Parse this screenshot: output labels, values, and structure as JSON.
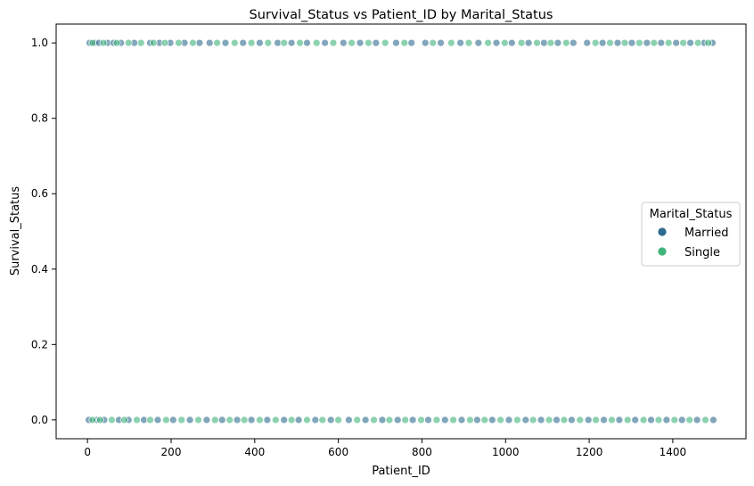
{
  "chart_data": {
    "type": "scatter",
    "title": "Survival_Status vs Patient_ID by Marital_Status",
    "xlabel": "Patient_ID",
    "ylabel": "Survival_Status",
    "xlim": [
      -75,
      1575
    ],
    "ylim": [
      -0.05,
      1.05
    ],
    "x_ticks": [
      0,
      200,
      400,
      600,
      800,
      1000,
      1200,
      1400
    ],
    "y_ticks": [
      0.0,
      0.2,
      0.4,
      0.6,
      0.8,
      1.0
    ],
    "x_tick_labels": [
      "0",
      "200",
      "400",
      "600",
      "800",
      "1000",
      "1200",
      "1400"
    ],
    "y_tick_labels": [
      "0.0",
      "0.2",
      "0.4",
      "0.6",
      "0.8",
      "1.0"
    ],
    "grid": false,
    "legend": {
      "title": "Marital_Status",
      "placement": "center-right",
      "entries": [
        "Married",
        "Single"
      ]
    },
    "series": [
      {
        "name": "Married",
        "color": "#2e6b8e",
        "points": [
          [
            5,
            1
          ],
          [
            18,
            1
          ],
          [
            28,
            1
          ],
          [
            48,
            1
          ],
          [
            62,
            1
          ],
          [
            80,
            1
          ],
          [
            112,
            1
          ],
          [
            150,
            1
          ],
          [
            172,
            1
          ],
          [
            198,
            1
          ],
          [
            232,
            1
          ],
          [
            268,
            1
          ],
          [
            292,
            1
          ],
          [
            330,
            1
          ],
          [
            372,
            1
          ],
          [
            412,
            1
          ],
          [
            455,
            1
          ],
          [
            488,
            1
          ],
          [
            525,
            1
          ],
          [
            568,
            1
          ],
          [
            612,
            1
          ],
          [
            652,
            1
          ],
          [
            690,
            1
          ],
          [
            738,
            1
          ],
          [
            775,
            1
          ],
          [
            808,
            1
          ],
          [
            845,
            1
          ],
          [
            892,
            1
          ],
          [
            935,
            1
          ],
          [
            978,
            1
          ],
          [
            1015,
            1
          ],
          [
            1055,
            1
          ],
          [
            1092,
            1
          ],
          [
            1125,
            1
          ],
          [
            1162,
            1
          ],
          [
            1195,
            1
          ],
          [
            1232,
            1
          ],
          [
            1268,
            1
          ],
          [
            1302,
            1
          ],
          [
            1338,
            1
          ],
          [
            1372,
            1
          ],
          [
            1408,
            1
          ],
          [
            1442,
            1
          ],
          [
            1475,
            1
          ],
          [
            1495,
            1
          ],
          [
            3,
            0
          ],
          [
            22,
            0
          ],
          [
            40,
            0
          ],
          [
            75,
            0
          ],
          [
            98,
            0
          ],
          [
            135,
            0
          ],
          [
            168,
            0
          ],
          [
            205,
            0
          ],
          [
            245,
            0
          ],
          [
            285,
            0
          ],
          [
            322,
            0
          ],
          [
            358,
            0
          ],
          [
            392,
            0
          ],
          [
            430,
            0
          ],
          [
            470,
            0
          ],
          [
            505,
            0
          ],
          [
            545,
            0
          ],
          [
            582,
            0
          ],
          [
            625,
            0
          ],
          [
            665,
            0
          ],
          [
            705,
            0
          ],
          [
            742,
            0
          ],
          [
            778,
            0
          ],
          [
            815,
            0
          ],
          [
            855,
            0
          ],
          [
            895,
            0
          ],
          [
            932,
            0
          ],
          [
            968,
            0
          ],
          [
            1008,
            0
          ],
          [
            1048,
            0
          ],
          [
            1085,
            0
          ],
          [
            1122,
            0
          ],
          [
            1158,
            0
          ],
          [
            1198,
            0
          ],
          [
            1235,
            0
          ],
          [
            1272,
            0
          ],
          [
            1310,
            0
          ],
          [
            1348,
            0
          ],
          [
            1385,
            0
          ],
          [
            1422,
            0
          ],
          [
            1458,
            0
          ],
          [
            1497,
            0
          ]
        ]
      },
      {
        "name": "Single",
        "color": "#3fb47b",
        "points": [
          [
            12,
            1
          ],
          [
            38,
            1
          ],
          [
            70,
            1
          ],
          [
            98,
            1
          ],
          [
            128,
            1
          ],
          [
            158,
            1
          ],
          [
            185,
            1
          ],
          [
            218,
            1
          ],
          [
            252,
            1
          ],
          [
            310,
            1
          ],
          [
            352,
            1
          ],
          [
            392,
            1
          ],
          [
            432,
            1
          ],
          [
            470,
            1
          ],
          [
            508,
            1
          ],
          [
            548,
            1
          ],
          [
            588,
            1
          ],
          [
            632,
            1
          ],
          [
            672,
            1
          ],
          [
            712,
            1
          ],
          [
            758,
            1
          ],
          [
            826,
            1
          ],
          [
            870,
            1
          ],
          [
            912,
            1
          ],
          [
            958,
            1
          ],
          [
            998,
            1
          ],
          [
            1038,
            1
          ],
          [
            1075,
            1
          ],
          [
            1108,
            1
          ],
          [
            1145,
            1
          ],
          [
            1215,
            1
          ],
          [
            1250,
            1
          ],
          [
            1285,
            1
          ],
          [
            1320,
            1
          ],
          [
            1355,
            1
          ],
          [
            1390,
            1
          ],
          [
            1425,
            1
          ],
          [
            1460,
            1
          ],
          [
            1485,
            1
          ],
          [
            12,
            0
          ],
          [
            30,
            0
          ],
          [
            58,
            0
          ],
          [
            88,
            0
          ],
          [
            118,
            0
          ],
          [
            150,
            0
          ],
          [
            188,
            0
          ],
          [
            225,
            0
          ],
          [
            265,
            0
          ],
          [
            305,
            0
          ],
          [
            340,
            0
          ],
          [
            375,
            0
          ],
          [
            412,
            0
          ],
          [
            450,
            0
          ],
          [
            488,
            0
          ],
          [
            525,
            0
          ],
          [
            562,
            0
          ],
          [
            600,
            0
          ],
          [
            645,
            0
          ],
          [
            685,
            0
          ],
          [
            722,
            0
          ],
          [
            760,
            0
          ],
          [
            798,
            0
          ],
          [
            835,
            0
          ],
          [
            875,
            0
          ],
          [
            915,
            0
          ],
          [
            950,
            0
          ],
          [
            988,
            0
          ],
          [
            1028,
            0
          ],
          [
            1066,
            0
          ],
          [
            1104,
            0
          ],
          [
            1140,
            0
          ],
          [
            1178,
            0
          ],
          [
            1216,
            0
          ],
          [
            1254,
            0
          ],
          [
            1292,
            0
          ],
          [
            1330,
            0
          ],
          [
            1366,
            0
          ],
          [
            1404,
            0
          ],
          [
            1440,
            0
          ],
          [
            1478,
            0
          ]
        ]
      }
    ]
  }
}
